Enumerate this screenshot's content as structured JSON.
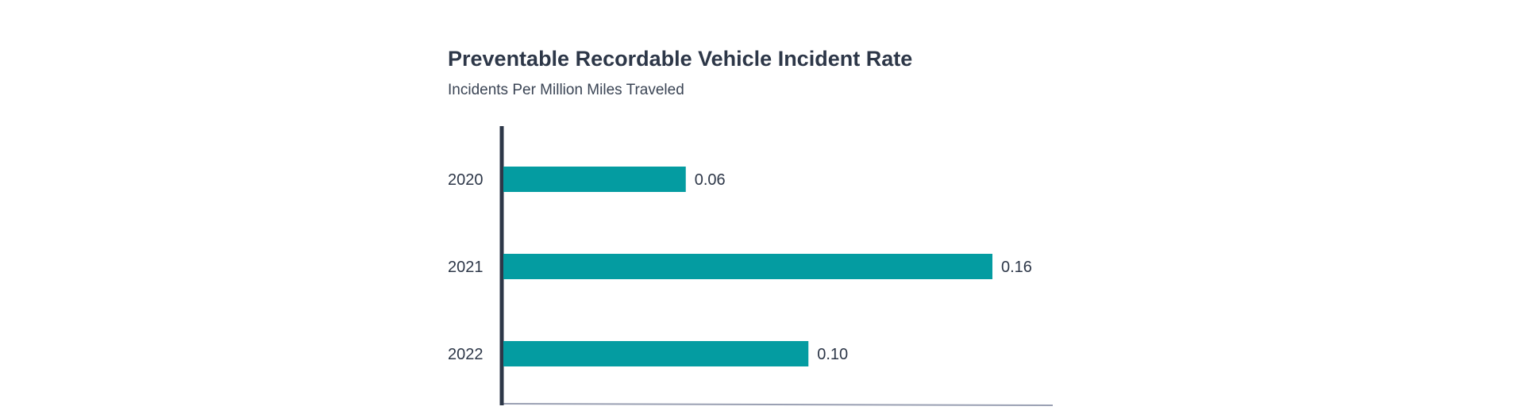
{
  "chart": {
    "title": "Preventable Recordable Vehicle Incident Rate",
    "subtitle": "Incidents Per Million Miles Traveled"
  },
  "chart_data": {
    "type": "bar",
    "orientation": "horizontal",
    "title": "Preventable Recordable Vehicle Incident Rate",
    "subtitle": "Incidents Per Million Miles Traveled",
    "categories": [
      "2020",
      "2021",
      "2022"
    ],
    "values": [
      0.06,
      0.16,
      0.1
    ],
    "value_labels": [
      "0.06",
      "0.16",
      "0.10"
    ],
    "xlabel": "",
    "ylabel": "",
    "xlim": [
      0,
      0.18
    ],
    "grid": false,
    "legend": "none",
    "colors": {
      "bar": "#049ca1",
      "axis": "#2d3748",
      "baseline": "#9aa0b3",
      "text": "#2d3748"
    }
  }
}
